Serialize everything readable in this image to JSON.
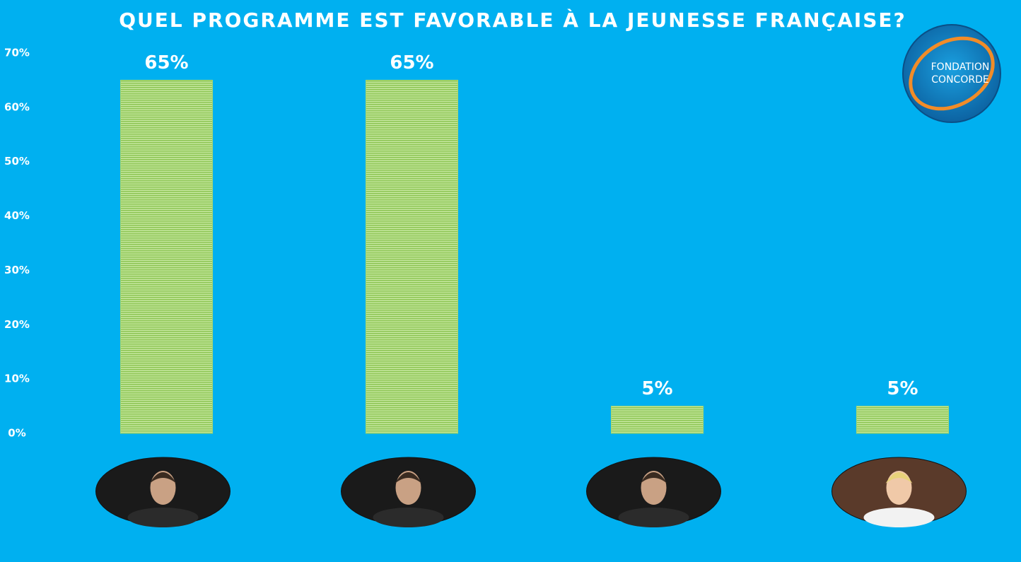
{
  "chart_data": {
    "type": "bar",
    "title": "QUEL PROGRAMME EST FAVORABLE À LA JEUNESSE FRANÇAISE?",
    "categories": [
      null,
      null,
      null,
      null
    ],
    "values": [
      65,
      65,
      5,
      5
    ],
    "value_labels": [
      "65%",
      "65%",
      "5%",
      "5%"
    ],
    "color": "#a5d86e",
    "ylim": [
      0,
      70
    ],
    "yticks": [
      {
        "value": 0,
        "label": "0%"
      },
      {
        "value": 10,
        "label": "10%"
      },
      {
        "value": 20,
        "label": "20%"
      },
      {
        "value": 30,
        "label": "30%"
      },
      {
        "value": 40,
        "label": "40%"
      },
      {
        "value": 50,
        "label": "50%"
      },
      {
        "value": 60,
        "label": "60%"
      },
      {
        "value": 70,
        "label": "70%"
      }
    ],
    "grid": false,
    "logo_text": [
      "FONDATION",
      "CONCORDE"
    ]
  }
}
